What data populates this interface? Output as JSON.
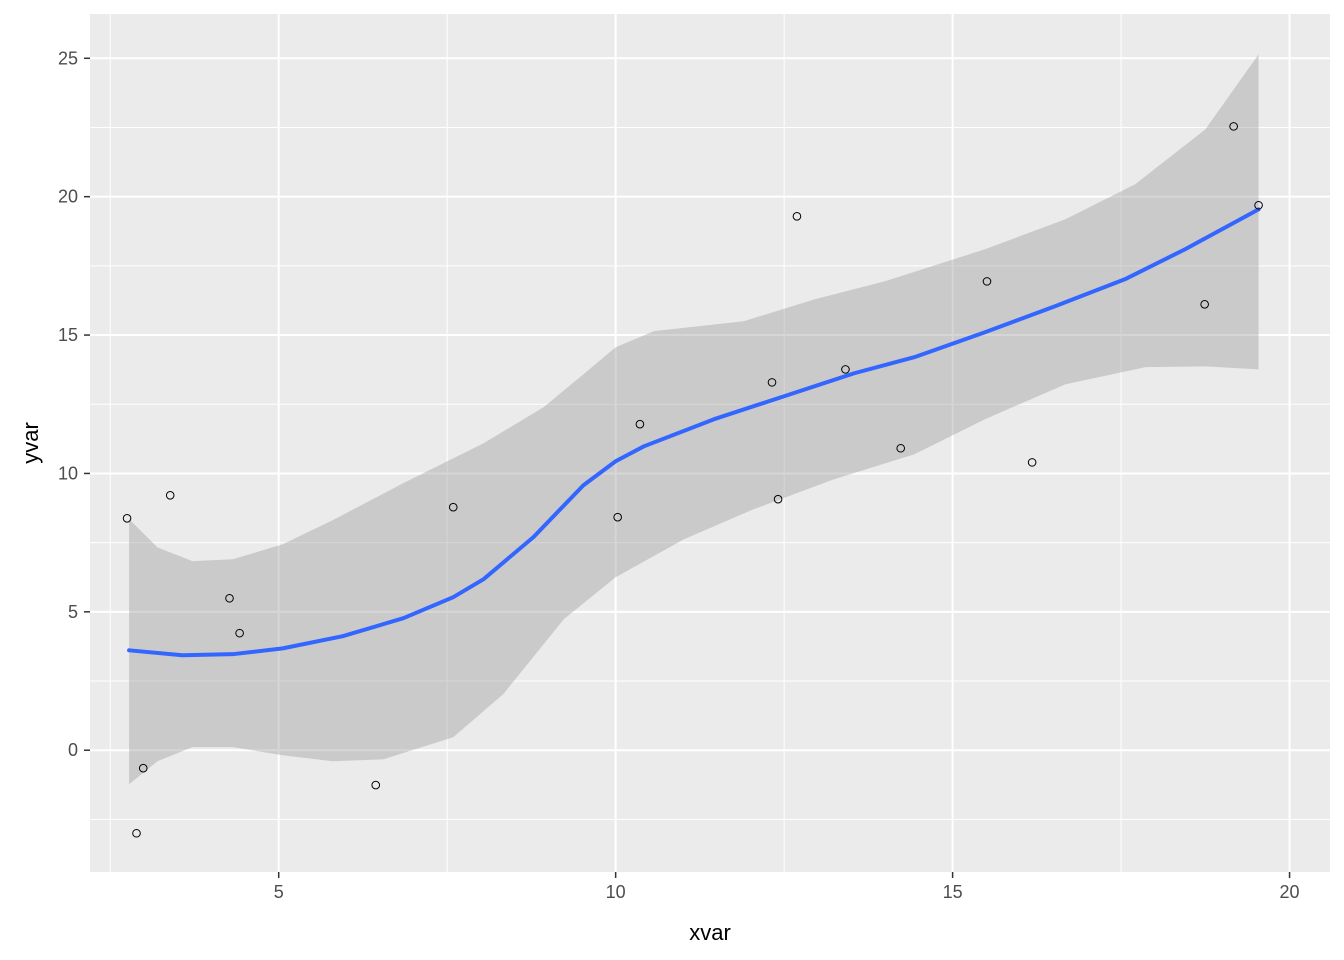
{
  "chart_data": {
    "type": "scatter",
    "title": "",
    "xlabel": "xvar",
    "ylabel": "yvar",
    "xlim": [
      2.2,
      20.6
    ],
    "ylim": [
      -4.4,
      26.6
    ],
    "xticks": [
      5,
      10,
      15,
      20
    ],
    "yticks": [
      0,
      5,
      10,
      15,
      20,
      25
    ],
    "grid": true,
    "colors": {
      "panel": "#ebebeb",
      "grid": "#ffffff",
      "line": "#3366ff",
      "ribbon": "#999999"
    },
    "points": {
      "x": [
        2.75,
        2.89,
        2.99,
        3.39,
        4.27,
        4.42,
        6.44,
        7.59,
        10.03,
        10.36,
        12.32,
        12.41,
        12.69,
        13.41,
        14.23,
        15.51,
        16.18,
        18.74,
        19.17,
        19.54
      ],
      "y": [
        8.38,
        -3.0,
        -0.65,
        9.21,
        5.49,
        4.23,
        -1.26,
        8.78,
        8.42,
        11.78,
        13.29,
        9.07,
        19.29,
        13.76,
        10.91,
        16.94,
        10.4,
        16.11,
        22.54,
        19.69
      ]
    },
    "smooth": {
      "x": [
        2.78,
        3.57,
        4.32,
        5.06,
        5.95,
        6.85,
        7.59,
        8.04,
        8.78,
        9.52,
        10.0,
        10.42,
        11.46,
        12.5,
        13.54,
        14.43,
        15.48,
        16.52,
        17.56,
        18.45,
        19.54
      ],
      "y": [
        3.61,
        3.43,
        3.47,
        3.68,
        4.12,
        4.77,
        5.53,
        6.18,
        7.7,
        9.57,
        10.44,
        10.98,
        11.96,
        12.79,
        13.62,
        14.2,
        15.1,
        16.04,
        17.02,
        18.1,
        19.54
      ]
    },
    "ribbon_upper": {
      "x": [
        2.78,
        3.2,
        3.72,
        4.32,
        5.06,
        5.8,
        6.85,
        8.04,
        8.93,
        9.52,
        10.0,
        10.57,
        11.9,
        12.95,
        13.99,
        15.48,
        16.67,
        17.71,
        18.75,
        19.54
      ],
      "y": [
        8.35,
        7.33,
        6.83,
        6.9,
        7.44,
        8.31,
        9.65,
        11.09,
        12.39,
        13.58,
        14.56,
        15.14,
        15.5,
        16.29,
        16.94,
        18.1,
        19.18,
        20.45,
        22.43,
        25.14
      ]
    },
    "ribbon_lower": {
      "x": [
        2.78,
        3.2,
        3.72,
        4.32,
        5.06,
        5.8,
        6.55,
        7.59,
        8.33,
        9.23,
        10.0,
        11.01,
        12.05,
        13.24,
        14.43,
        15.48,
        16.67,
        17.86,
        18.75,
        19.54
      ],
      "y": [
        -1.23,
        -0.4,
        0.11,
        0.11,
        -0.18,
        -0.4,
        -0.33,
        0.47,
        2.02,
        4.73,
        6.25,
        7.62,
        8.71,
        9.79,
        10.69,
        11.96,
        13.22,
        13.84,
        13.87,
        13.76
      ]
    }
  }
}
